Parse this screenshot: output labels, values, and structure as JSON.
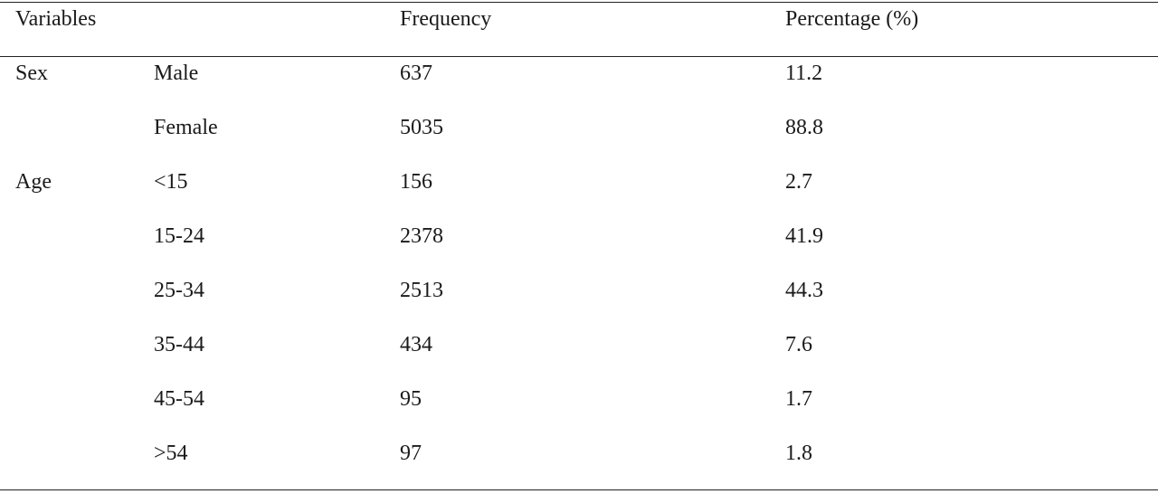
{
  "table": {
    "headers": {
      "variables": "Variables",
      "frequency": "Frequency",
      "percentage": "Percentage (%)"
    },
    "rows": [
      {
        "variable": "Sex",
        "category": "Male",
        "frequency": "637",
        "percentage": "11.2"
      },
      {
        "variable": "",
        "category": "Female",
        "frequency": "5035",
        "percentage": "88.8"
      },
      {
        "variable": "Age",
        "category": "<15",
        "frequency": "156",
        "percentage": "2.7"
      },
      {
        "variable": "",
        "category": "15-24",
        "frequency": "2378",
        "percentage": "41.9"
      },
      {
        "variable": "",
        "category": "25-34",
        "frequency": "2513",
        "percentage": "44.3"
      },
      {
        "variable": "",
        "category": "35-44",
        "frequency": "434",
        "percentage": "7.6"
      },
      {
        "variable": "",
        "category": "45-54",
        "frequency": "95",
        "percentage": "1.7"
      },
      {
        "variable": "",
        "category": ">54",
        "frequency": "97",
        "percentage": "1.8"
      }
    ]
  }
}
